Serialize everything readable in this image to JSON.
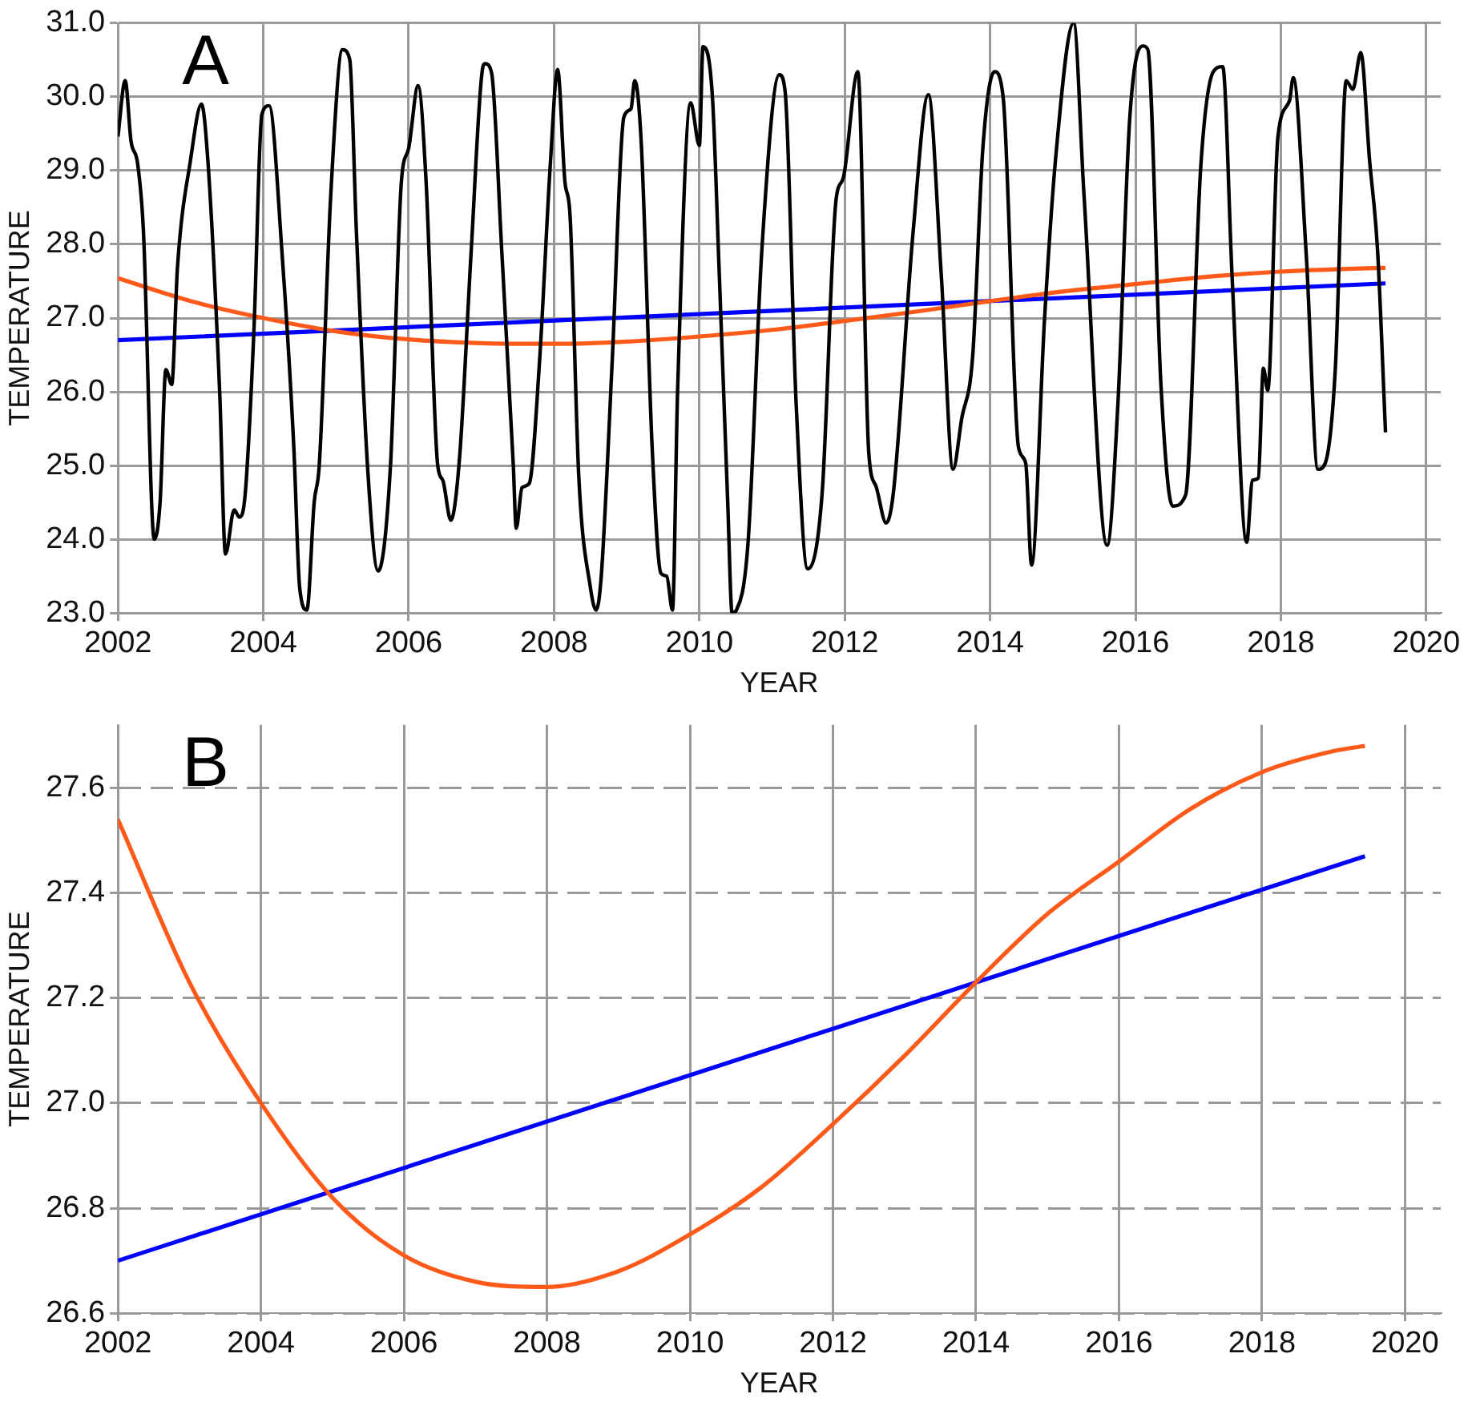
{
  "chart_data": [
    {
      "type": "line",
      "xlabel": "YEAR",
      "ylabel": "TEMPERATURE",
      "annotations": [
        "A"
      ],
      "xlim": [
        2002,
        2020.2
      ],
      "xticks": [
        2002,
        2004,
        2006,
        2008,
        2010,
        2012,
        2014,
        2016,
        2018,
        2020
      ],
      "ylim": [
        23,
        31
      ],
      "yticks": [
        {
          "value": 23,
          "label": "23.0"
        },
        {
          "value": 24,
          "label": "24.0"
        },
        {
          "value": 25,
          "label": "25.0"
        },
        {
          "value": 26,
          "label": "26.0"
        },
        {
          "value": 27,
          "label": "27.0"
        },
        {
          "value": 28,
          "label": "28.0"
        },
        {
          "value": 29,
          "label": "29.0"
        },
        {
          "value": 30,
          "label": "30.0"
        },
        {
          "value": 31,
          "label": "31.0"
        }
      ],
      "grid": true,
      "legend": false,
      "marker": "none",
      "series": [
        {
          "color": "#000000",
          "x": [
            2002.0,
            2002.1,
            2002.18,
            2002.27,
            2002.35,
            2002.5,
            2002.58,
            2002.66,
            2002.74,
            2002.82,
            2003.0,
            2003.15,
            2003.24,
            2003.4,
            2003.48,
            2003.6,
            2003.67,
            2003.75,
            2003.87,
            2003.98,
            2004.08,
            2004.26,
            2004.42,
            2004.5,
            2004.6,
            2004.7,
            2004.77,
            2004.93,
            2005.09,
            2005.19,
            2005.28,
            2005.44,
            2005.58,
            2005.75,
            2005.9,
            2006.0,
            2006.13,
            2006.24,
            2006.4,
            2006.47,
            2006.58,
            2006.7,
            2006.86,
            2007.02,
            2007.05,
            2007.14,
            2007.28,
            2007.44,
            2007.48,
            2007.56,
            2007.66,
            2007.8,
            2007.95,
            2008.05,
            2008.15,
            2008.22,
            2008.34,
            2008.5,
            2008.58,
            2008.65,
            2008.8,
            2008.96,
            2009.06,
            2009.11,
            2009.2,
            2009.35,
            2009.47,
            2009.55,
            2009.63,
            2009.7,
            2009.88,
            2010.0,
            2010.05,
            2010.18,
            2010.27,
            2010.39,
            2010.45,
            2010.51,
            2010.67,
            2010.86,
            2011.1,
            2011.18,
            2011.33,
            2011.49,
            2011.69,
            2011.88,
            2011.98,
            2012.18,
            2012.33,
            2012.43,
            2012.57,
            2012.67,
            2012.94,
            2013.15,
            2013.33,
            2013.49,
            2013.61,
            2013.76,
            2013.9,
            2014.06,
            2014.18,
            2014.39,
            2014.49,
            2014.57,
            2014.75,
            2014.9,
            2015.15,
            2015.29,
            2015.61,
            2015.76,
            2015.92,
            2016.1,
            2016.17,
            2016.35,
            2016.51,
            2016.69,
            2016.9,
            2017.07,
            2017.2,
            2017.33,
            2017.53,
            2017.61,
            2017.69,
            2017.76,
            2017.82,
            2017.96,
            2018.12,
            2018.17,
            2018.35,
            2018.51,
            2018.61,
            2018.75,
            2018.9,
            2018.99,
            2019.1,
            2019.22,
            2019.33,
            2019.44
          ],
          "values": [
            29.46,
            30.22,
            29.4,
            29.1,
            28.2,
            24.0,
            24.5,
            26.3,
            26.1,
            27.7,
            29.15,
            29.9,
            29.1,
            26.0,
            23.8,
            24.4,
            24.3,
            24.6,
            26.8,
            29.76,
            29.88,
            27.85,
            25.25,
            23.35,
            23.04,
            24.5,
            25.0,
            28.7,
            30.64,
            30.5,
            28.2,
            24.9,
            23.57,
            25.0,
            28.85,
            29.3,
            30.15,
            28.85,
            25.0,
            24.8,
            24.26,
            25.1,
            27.9,
            30.4,
            30.45,
            30.33,
            27.93,
            25.0,
            24.15,
            24.7,
            24.76,
            26.4,
            29.1,
            30.37,
            28.85,
            28.4,
            24.87,
            23.35,
            23.04,
            23.5,
            26.4,
            29.72,
            29.84,
            30.22,
            29.38,
            25.25,
            23.54,
            23.5,
            23.04,
            26.0,
            29.92,
            29.34,
            30.68,
            29.99,
            27.7,
            24.5,
            23.0,
            23.04,
            23.96,
            27.93,
            30.3,
            30.07,
            25.87,
            23.6,
            24.64,
            28.6,
            28.9,
            30.34,
            25.18,
            24.72,
            24.22,
            24.64,
            28.16,
            30.03,
            27.55,
            24.95,
            25.64,
            26.48,
            29.3,
            30.34,
            29.99,
            25.25,
            25.03,
            23.65,
            27.01,
            29.15,
            31.0,
            28.7,
            23.92,
            25.87,
            29.69,
            30.69,
            30.64,
            26.1,
            24.45,
            24.6,
            29.08,
            30.34,
            30.41,
            27.55,
            23.96,
            24.8,
            24.83,
            26.32,
            26.02,
            29.46,
            29.95,
            30.26,
            27.85,
            24.95,
            25.03,
            26.32,
            30.22,
            30.1,
            30.6,
            29.15,
            27.93,
            25.45
          ]
        },
        {
          "color": "#ff5a1a",
          "x": [
            2002,
            2003,
            2004,
            2005,
            2006,
            2007,
            2008,
            2009,
            2010,
            2011,
            2012,
            2013,
            2014,
            2015,
            2016,
            2017,
            2018,
            2019,
            2019.44
          ],
          "values": [
            27.54,
            27.23,
            27.0,
            26.82,
            26.71,
            26.66,
            26.65,
            26.68,
            26.75,
            26.84,
            26.96,
            27.09,
            27.23,
            27.36,
            27.46,
            27.56,
            27.63,
            27.67,
            27.68
          ]
        },
        {
          "color": "#0000ff",
          "x": [
            2002,
            2019.44
          ],
          "values": [
            26.7,
            27.47
          ]
        }
      ]
    },
    {
      "type": "line",
      "xlabel": "YEAR",
      "ylabel": "TEMPERATURE",
      "annotations": [
        "B"
      ],
      "xlim": [
        2002,
        2020.5
      ],
      "xticks": [
        2002,
        2004,
        2006,
        2008,
        2010,
        2012,
        2014,
        2016,
        2018,
        2020
      ],
      "ylim": [
        26.6,
        27.72
      ],
      "yticks": [
        26.6,
        26.8,
        {
          "value": 27,
          "label": "27.0"
        },
        27.2,
        27.4,
        27.6
      ],
      "grid": true,
      "legend": false,
      "marker": "none",
      "series": [
        {
          "color": "#ff5a1a",
          "x": [
            2002,
            2003,
            2004,
            2005,
            2006,
            2007,
            2008,
            2009,
            2010,
            2011,
            2012,
            2013,
            2014,
            2015,
            2016,
            2017,
            2018,
            2019,
            2019.44
          ],
          "values": [
            27.54,
            27.23,
            27.0,
            26.82,
            26.71,
            26.66,
            26.65,
            26.68,
            26.75,
            26.84,
            26.96,
            27.09,
            27.23,
            27.36,
            27.46,
            27.56,
            27.63,
            27.67,
            27.68
          ]
        },
        {
          "color": "#0000ff",
          "x": [
            2002,
            2019.44
          ],
          "values": [
            26.7,
            27.47
          ]
        }
      ]
    }
  ]
}
